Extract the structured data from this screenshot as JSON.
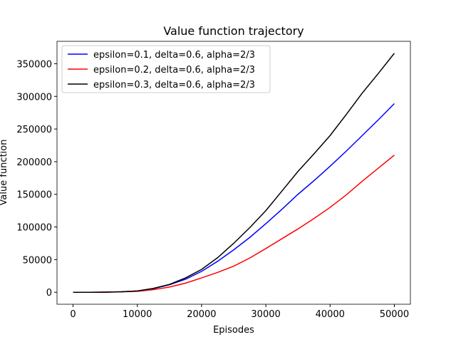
{
  "chart_data": {
    "type": "line",
    "title": "Value function trajectory",
    "x_label": "Episodes",
    "y_label": "Value function",
    "x": [
      0,
      2500,
      5000,
      7500,
      10000,
      12500,
      15000,
      17500,
      20000,
      22500,
      25000,
      27500,
      30000,
      32500,
      35000,
      37500,
      40000,
      42500,
      45000,
      47500,
      50000
    ],
    "series": [
      {
        "name": "epsilon=0.1, delta=0.6, alpha=2/3",
        "color": "#0000ff",
        "values": [
          0,
          0,
          200,
          800,
          2000,
          5500,
          11500,
          20000,
          32000,
          47500,
          65000,
          84000,
          105000,
          127000,
          150000,
          171000,
          193000,
          216000,
          240000,
          264000,
          289000
        ]
      },
      {
        "name": "epsilon=0.2, delta=0.6, alpha=2/3",
        "color": "#ff0000",
        "values": [
          0,
          0,
          150,
          600,
          1500,
          4000,
          8000,
          14000,
          22000,
          30500,
          40000,
          52500,
          67000,
          82000,
          97000,
          113000,
          130000,
          149000,
          170000,
          190000,
          210000
        ]
      },
      {
        "name": "epsilon=0.3, delta=0.6, alpha=2/3",
        "color": "#000000",
        "values": [
          0,
          0,
          200,
          800,
          2000,
          6000,
          12000,
          22000,
          35000,
          53000,
          75000,
          99000,
          125000,
          155000,
          185000,
          212000,
          240000,
          272000,
          305000,
          335000,
          366000
        ]
      }
    ],
    "xlim": [
      -2500,
      52500
    ],
    "xticks": [
      0,
      10000,
      20000,
      30000,
      40000,
      50000
    ],
    "ylim": [
      -18300,
      384300
    ],
    "yticks": [
      0,
      50000,
      100000,
      150000,
      200000,
      250000,
      300000,
      350000
    ],
    "legend": "upper left",
    "grid": false
  }
}
